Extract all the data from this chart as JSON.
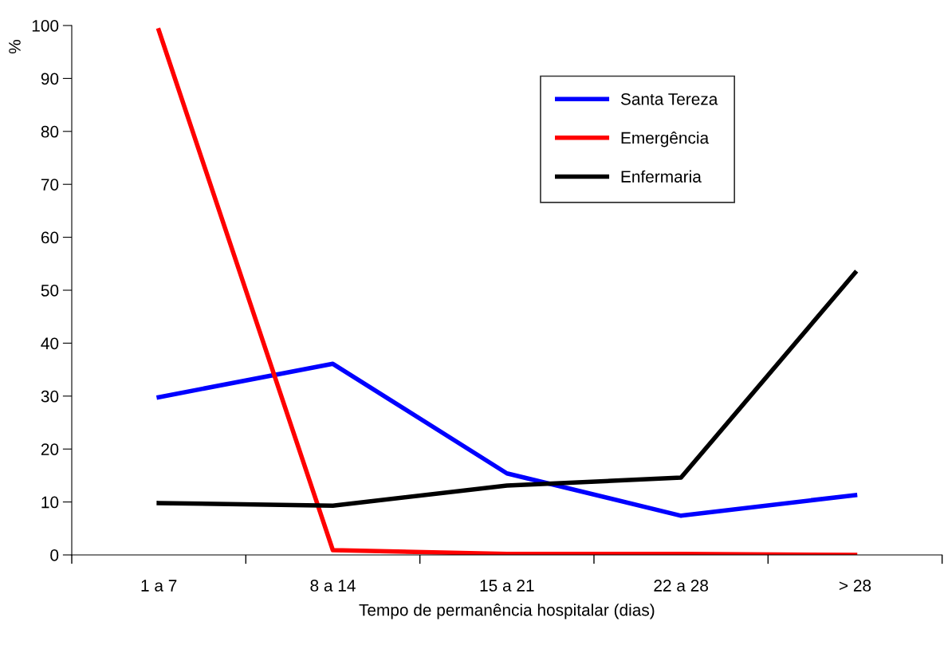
{
  "chart_data": {
    "type": "line",
    "xlabel": "Tempo de permanência hospitalar (dias)",
    "ylabel": "%",
    "categories": [
      "1 a 7",
      "8 a 14",
      "15 a 21",
      "22 a 28",
      "> 28"
    ],
    "series": [
      {
        "name": "Santa Tereza",
        "color": "#0000ff",
        "values": [
          29.8,
          36.1,
          15.4,
          7.4,
          11.3
        ]
      },
      {
        "name": "Emergência",
        "color": "#ff0000",
        "values": [
          99.1,
          0.9,
          0.2,
          0.2,
          0
        ]
      },
      {
        "name": "Enfermaria",
        "color": "#000000",
        "values": [
          9.8,
          9.3,
          13.1,
          14.6,
          53.3
        ]
      }
    ],
    "ylim": [
      0,
      100
    ],
    "yticks": [
      0,
      10,
      20,
      30,
      40,
      50,
      60,
      70,
      80,
      90,
      100
    ],
    "grid": false,
    "legend": "top",
    "marker": "none",
    "line_style": "solid"
  }
}
